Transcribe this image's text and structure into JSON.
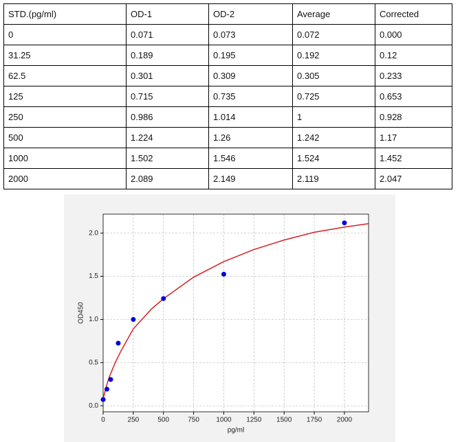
{
  "table": {
    "header": [
      "STD.(pg/ml)",
      "OD-1",
      "OD-2",
      "Average",
      "Corrected"
    ],
    "rows": [
      [
        "0",
        "0.071",
        "0.073",
        "0.072",
        "0.000"
      ],
      [
        "31.25",
        "0.189",
        "0.195",
        "0.192",
        "0.12"
      ],
      [
        "62.5",
        "0.301",
        "0.309",
        "0.305",
        "0.233"
      ],
      [
        "125",
        "0.715",
        "0.735",
        "0.725",
        "0.653"
      ],
      [
        "250",
        "0.986",
        "1.014",
        "1",
        "0.928"
      ],
      [
        "500",
        "1.224",
        "1.26",
        "1.242",
        "1.17"
      ],
      [
        "1000",
        "1.502",
        "1.546",
        "1.524",
        "1.452"
      ],
      [
        "2000",
        "2.089",
        "2.149",
        "2.119",
        "2.047"
      ]
    ]
  },
  "chart_data": {
    "type": "scatter",
    "x_label": "pg/ml",
    "y_label": "OD450",
    "xlim": [
      0,
      2200
    ],
    "ylim": [
      -0.07,
      2.22
    ],
    "xticks": [
      0,
      250,
      500,
      750,
      1000,
      1250,
      1500,
      1750,
      2000
    ],
    "yticks": [
      {
        "value": 0,
        "label": "0.0"
      },
      0.5,
      {
        "value": 1,
        "label": "1.0"
      },
      1.5,
      {
        "value": 2,
        "label": "2.0"
      }
    ],
    "grid": true,
    "series": [
      {
        "type": "scatter",
        "color": "#0000dd",
        "x": [
          0,
          31.25,
          62.5,
          125,
          250,
          500,
          1000,
          2000
        ],
        "values": [
          0.072,
          0.192,
          0.305,
          0.725,
          1,
          1.242,
          1.524,
          2.119
        ]
      },
      {
        "type": "line",
        "color": "#d62020",
        "x": [
          0,
          25,
          50,
          100,
          150,
          250,
          400,
          500,
          750,
          1000,
          1250,
          1500,
          1750,
          2000,
          2200
        ],
        "values": [
          0.08,
          0.22,
          0.33,
          0.5,
          0.64,
          0.89,
          1.12,
          1.24,
          1.49,
          1.67,
          1.81,
          1.92,
          2.01,
          2.07,
          2.11
        ]
      }
    ]
  }
}
